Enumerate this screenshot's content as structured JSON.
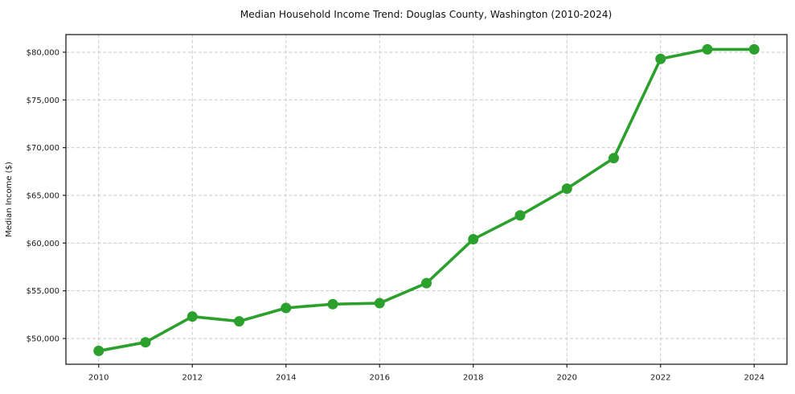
{
  "chart_data": {
    "type": "line",
    "title": "Median Household Income Trend: Douglas County, Washington (2010-2024)",
    "ylabel": "Median Income ($)",
    "x": [
      2010,
      2011,
      2012,
      2013,
      2014,
      2015,
      2016,
      2017,
      2018,
      2019,
      2020,
      2021,
      2022,
      2023,
      2024
    ],
    "values": [
      48700,
      49600,
      52300,
      51800,
      53200,
      53600,
      53700,
      55800,
      60400,
      62900,
      65700,
      68900,
      79300,
      80300,
      80300
    ],
    "series_name": "Median household income",
    "x_ticks": [
      2010,
      2012,
      2014,
      2016,
      2018,
      2020,
      2022,
      2024
    ],
    "x_tick_labels": [
      "2010",
      "2012",
      "2014",
      "2016",
      "2018",
      "2020",
      "2022",
      "2024"
    ],
    "y_ticks": [
      50000,
      55000,
      60000,
      65000,
      70000,
      75000,
      80000
    ],
    "y_tick_labels": [
      "$50,000",
      "$55,000",
      "$60,000",
      "$65,000",
      "$70,000",
      "$75,000",
      "$80,000"
    ],
    "xlim": [
      2009.3,
      2024.7
    ],
    "ylim": [
      47300,
      81850
    ],
    "grid": true,
    "grid_style": "dashed",
    "legend": false,
    "marker": "circle",
    "colors": {
      "line": "#2ca02c",
      "marker": "#2ca02c",
      "grid": "#c9c9c9",
      "spine": "#1f1f1f",
      "text": "#111111",
      "background": "#ffffff"
    }
  }
}
